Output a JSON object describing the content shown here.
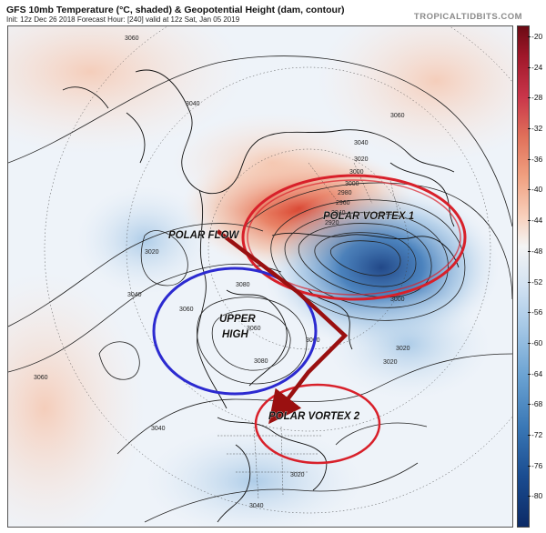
{
  "header": {
    "title": "GFS 10mb Temperature (°C, shaded) & Geopotential Height (dam, contour)",
    "init_line": "Init: 12z Dec 26 2018   Forecast Hour: [240]   valid at 12z Sat, Jan 05 2019",
    "site": "TROPICALTIDBITS.COM"
  },
  "colorbar": {
    "ticks": [
      "-20",
      "-24",
      "-28",
      "-32",
      "-36",
      "-40",
      "-44",
      "-48",
      "-52",
      "-56",
      "-60",
      "-64",
      "-68",
      "-72",
      "-76",
      "-80"
    ]
  },
  "contours": {
    "labels": [
      "3060",
      "3040",
      "3020",
      "3040",
      "3060",
      "3080",
      "3080",
      "3060",
      "3060",
      "3040",
      "3020",
      "3000",
      "3000",
      "2980",
      "2960",
      "2940",
      "2920",
      "3020",
      "3020",
      "3060",
      "3040",
      "3040",
      "3020",
      "3000",
      "3060"
    ]
  },
  "annotations": {
    "polar_flow": "POLAR FLOW",
    "polar_vortex_1": "POLAR VORTEX 1",
    "upper_high_1": "UPPER",
    "upper_high_2": "HIGH",
    "polar_vortex_2": "POLAR VORTEX 2"
  },
  "colors": {
    "vortex_circle": "#d8202a",
    "high_circle": "#2c2ad0",
    "flow_arrow": "#9a1010",
    "warm": "#e26a4a",
    "cold": "#2f6fb3"
  }
}
